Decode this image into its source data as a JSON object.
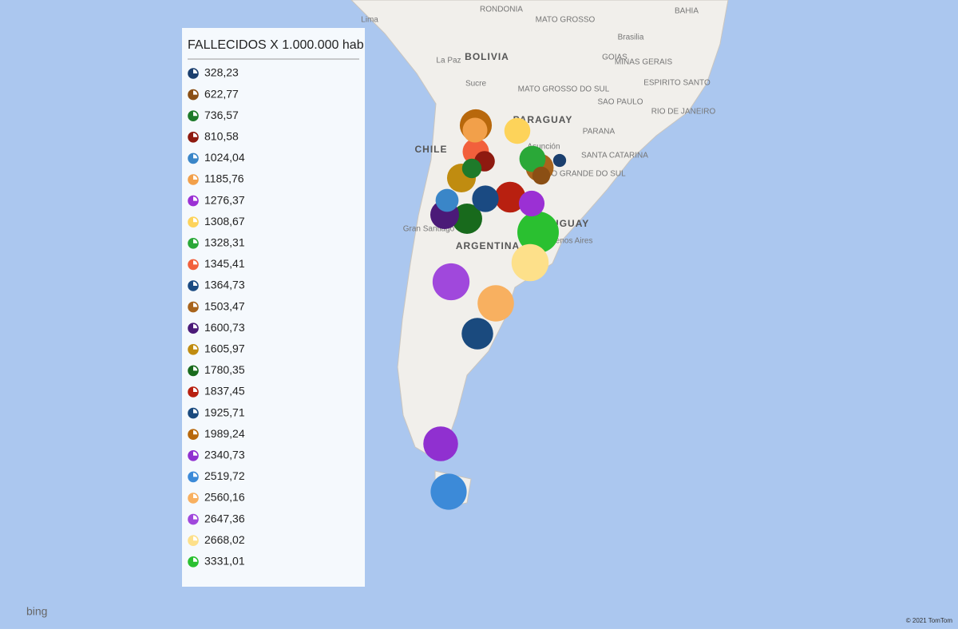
{
  "legend": {
    "title": "FALLECIDOS X 1.000.000 hab",
    "items": [
      {
        "value": 328.23,
        "label": "328,23",
        "color": "#1b3f6e"
      },
      {
        "value": 622.77,
        "label": "622,77",
        "color": "#8b4f14"
      },
      {
        "value": 736.57,
        "label": "736,57",
        "color": "#1e7a2a"
      },
      {
        "value": 810.58,
        "label": "810,58",
        "color": "#8e1a10"
      },
      {
        "value": 1024.04,
        "label": "1024,04",
        "color": "#3a86c8"
      },
      {
        "value": 1185.76,
        "label": "1185,76",
        "color": "#f2a04a"
      },
      {
        "value": 1276.37,
        "label": "1276,37",
        "color": "#9b30d4"
      },
      {
        "value": 1308.67,
        "label": "1308,67",
        "color": "#fdd35a"
      },
      {
        "value": 1328.31,
        "label": "1328,31",
        "color": "#2aa838"
      },
      {
        "value": 1345.41,
        "label": "1345,41",
        "color": "#f2603c"
      },
      {
        "value": 1364.73,
        "label": "1364,73",
        "color": "#1a4a82"
      },
      {
        "value": 1503.47,
        "label": "1503,47",
        "color": "#a8641c"
      },
      {
        "value": 1600.73,
        "label": "1600,73",
        "color": "#4b1a78"
      },
      {
        "value": 1605.97,
        "label": "1605,97",
        "color": "#c08c10"
      },
      {
        "value": 1780.35,
        "label": "1780,35",
        "color": "#186a1c"
      },
      {
        "value": 1837.45,
        "label": "1837,45",
        "color": "#b82010"
      },
      {
        "value": 1925.71,
        "label": "1925,71",
        "color": "#1a4a7e"
      },
      {
        "value": 1989.24,
        "label": "1989,24",
        "color": "#b8680c"
      },
      {
        "value": 2340.73,
        "label": "2340,73",
        "color": "#9030d0"
      },
      {
        "value": 2519.72,
        "label": "2519,72",
        "color": "#3c8ad8"
      },
      {
        "value": 2560.16,
        "label": "2560,16",
        "color": "#f8b060"
      },
      {
        "value": 2647.36,
        "label": "2647,36",
        "color": "#a048dc"
      },
      {
        "value": 2668.02,
        "label": "2668,02",
        "color": "#fde08a"
      },
      {
        "value": 3331.01,
        "label": "3331,01",
        "color": "#2ac030"
      }
    ]
  },
  "map_labels": [
    "Lima",
    "RONDONIA",
    "MATO GROSSO",
    "BAHIA",
    "Brasilia",
    "La Paz",
    "BOLIVIA",
    "GOIAS",
    "MINAS GERAIS",
    "Sucre",
    "MATO GROSSO DO SUL",
    "ESPIRITO SANTO",
    "SAO PAULO",
    "RIO DE JANEIRO",
    "PARAGUAY",
    "PARANA",
    "CHILE",
    "Asunción",
    "SANTA CATARINA",
    "RIO GRANDE DO SUL",
    "Gran Santiago",
    "ARGENTINA",
    "URUGUAY",
    "Buenos Aires"
  ],
  "logo": "bing",
  "attribution": "© 2021 TomTom"
}
